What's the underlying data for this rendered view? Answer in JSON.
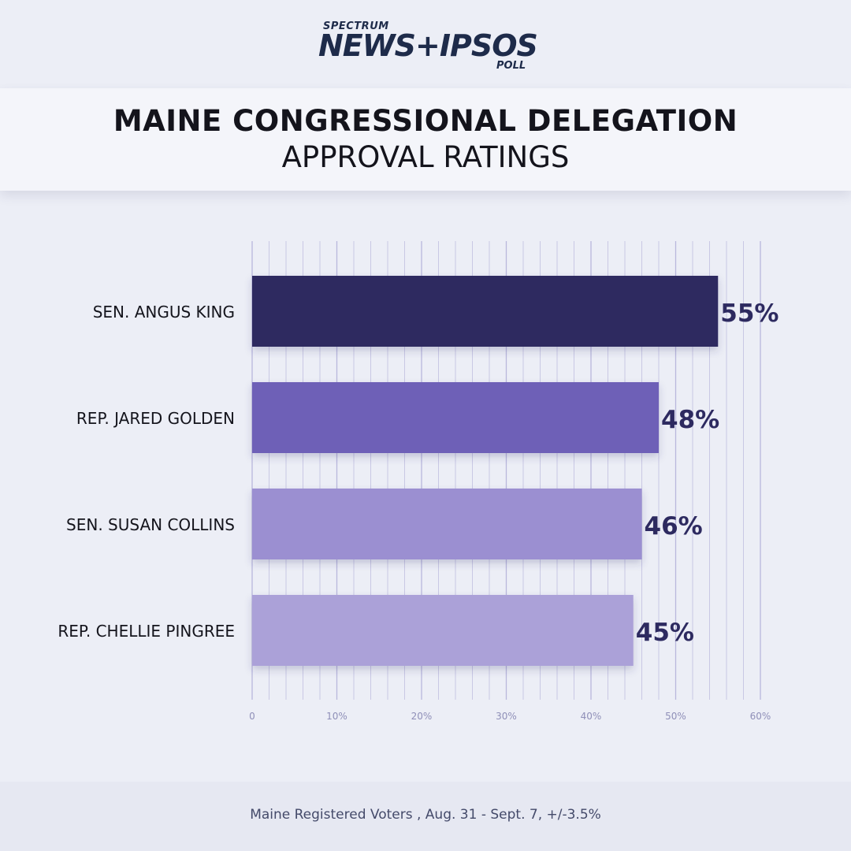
{
  "logo": {
    "top": "SPECTRUM",
    "main": "NEWS+IPSOS",
    "bottom": "POLL"
  },
  "title": "MAINE CONGRESSIONAL DELEGATION",
  "subtitle": "APPROVAL RATINGS",
  "footer": "Maine Registered Voters , Aug. 31 - Sept. 7, +/-3.5%",
  "chart_data": {
    "type": "bar",
    "orientation": "horizontal",
    "categories": [
      "SEN. ANGUS KING",
      "REP. JARED GOLDEN",
      "SEN. SUSAN COLLINS",
      "REP. CHELLIE PINGREE"
    ],
    "values": [
      55,
      48,
      46,
      45
    ],
    "value_labels": [
      "55%",
      "48%",
      "46%",
      "45%"
    ],
    "colors": [
      "#2d2a60",
      "#6e60b7",
      "#9b8fd1",
      "#aba1d8"
    ],
    "xlim": [
      0,
      60
    ],
    "tick_values": [
      0,
      10,
      20,
      30,
      40,
      50,
      60
    ],
    "tick_labels": [
      "0",
      "10%",
      "20%",
      "30%",
      "40%",
      "50%",
      "60%"
    ],
    "minor_grid_step": 2,
    "grid": true,
    "xlabel": "",
    "ylabel": ""
  }
}
